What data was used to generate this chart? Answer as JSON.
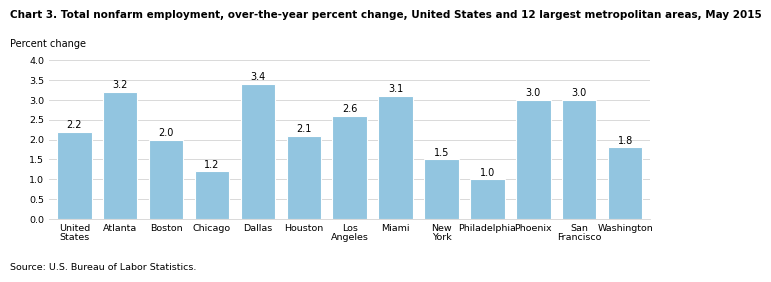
{
  "title": "Chart 3. Total nonfarm employment, over-the-year percent change, United States and 12 largest metropolitan areas, May 2015",
  "ylabel": "Percent change",
  "source": "Source: U.S. Bureau of Labor Statistics.",
  "categories": [
    "United\nStates",
    "Atlanta",
    "Boston",
    "Chicago",
    "Dallas",
    "Houston",
    "Los\nAngeles",
    "Miami",
    "New\nYork",
    "Philadelphia",
    "Phoenix",
    "San\nFrancisco",
    "Washington"
  ],
  "values": [
    2.2,
    3.2,
    2.0,
    1.2,
    3.4,
    2.1,
    2.6,
    3.1,
    1.5,
    1.0,
    3.0,
    3.0,
    1.8
  ],
  "bar_color": "#92c5e0",
  "ylim": [
    0,
    4.0
  ],
  "yticks": [
    0.0,
    0.5,
    1.0,
    1.5,
    2.0,
    2.5,
    3.0,
    3.5,
    4.0
  ],
  "title_fontsize": 7.5,
  "label_fontsize": 7.0,
  "tick_fontsize": 6.8,
  "value_fontsize": 7.0,
  "source_fontsize": 6.8,
  "bar_width": 0.75
}
